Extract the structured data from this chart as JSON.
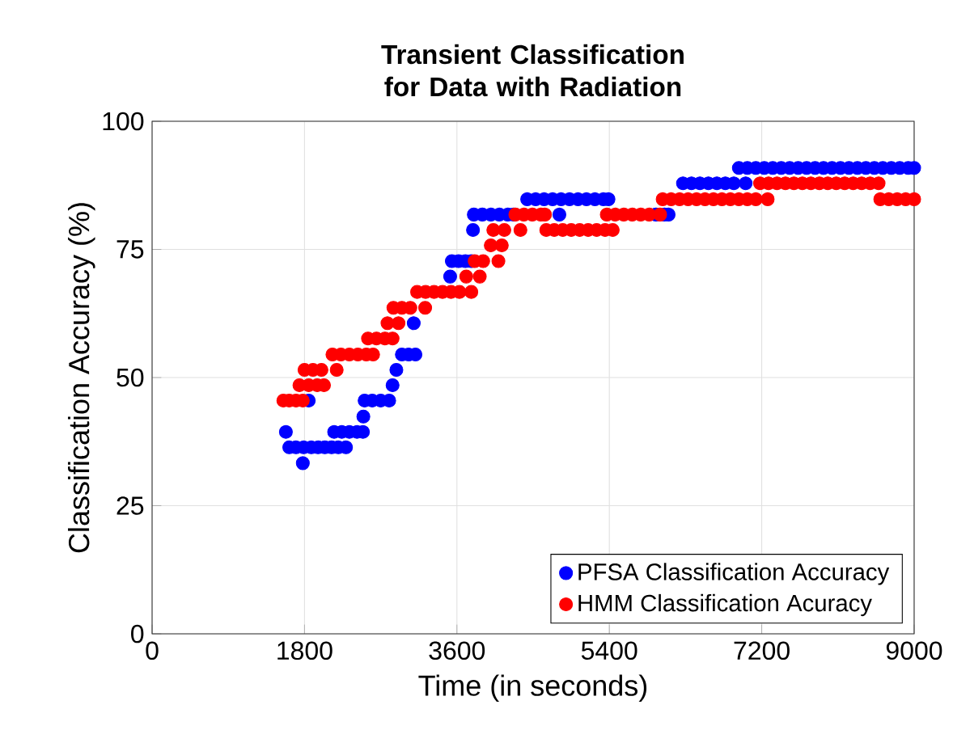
{
  "chart_data": {
    "type": "scatter",
    "title": "Transient Classification for Data with Radiation",
    "xlabel": "Time (in seconds)",
    "ylabel": "Classification Accuracy (%)",
    "xlim": [
      0,
      9000
    ],
    "ylim": [
      0,
      100
    ],
    "xticks": [
      0,
      1800,
      3600,
      5400,
      7200,
      9000
    ],
    "yticks": [
      0,
      25,
      50,
      75,
      100
    ],
    "grid": true,
    "legend": "bottom right",
    "marker": "circle",
    "series": [
      {
        "name": "PFSA Classification Accuracy",
        "color": "#0000ff",
        "x": [
          1580,
          1620,
          1700,
          1780,
          1790,
          1850,
          1880,
          1960,
          2040,
          2120,
          2150,
          2200,
          2240,
          2290,
          2330,
          2420,
          2490,
          2495,
          2510,
          2600,
          2700,
          2800,
          2840,
          2885,
          2950,
          3030,
          3090,
          3110,
          3225,
          3300,
          3400,
          3500,
          3520,
          3540,
          3620,
          3700,
          3770,
          3790,
          3800,
          3900,
          4000,
          4100,
          4200,
          4270,
          4430,
          4530,
          4630,
          4730,
          4810,
          4830,
          4930,
          5030,
          5130,
          5230,
          5330,
          5370,
          5390,
          5450,
          5550,
          5650,
          5750,
          5850,
          5950,
          6050,
          6100,
          6270,
          6370,
          6470,
          6570,
          6670,
          6770,
          6870,
          6930,
          7010,
          7030,
          7130,
          7230,
          7330,
          7430,
          7530,
          7630,
          7730,
          7830,
          7930,
          8030,
          8130,
          8230,
          8330,
          8430,
          8530,
          8630,
          8730,
          8830,
          8930,
          9000
        ],
        "values": [
          39.4,
          36.4,
          36.4,
          33.3,
          36.4,
          45.5,
          36.4,
          36.4,
          36.4,
          36.4,
          39.4,
          36.4,
          39.4,
          36.4,
          39.4,
          39.4,
          39.4,
          42.4,
          45.5,
          45.5,
          45.5,
          45.5,
          48.5,
          51.5,
          54.5,
          54.5,
          60.6,
          54.5,
          null,
          null,
          null,
          null,
          69.7,
          72.7,
          72.7,
          72.7,
          72.7,
          78.8,
          81.8,
          81.8,
          81.8,
          81.8,
          81.8,
          81.8,
          84.8,
          84.8,
          84.8,
          84.8,
          81.8,
          84.8,
          84.8,
          84.8,
          84.8,
          84.8,
          84.8,
          null,
          84.8,
          null,
          null,
          null,
          null,
          null,
          81.8,
          81.8,
          81.8,
          87.9,
          87.9,
          87.9,
          87.9,
          87.9,
          87.9,
          87.9,
          90.9,
          87.9,
          90.9,
          90.9,
          90.9,
          90.9,
          90.9,
          90.9,
          90.9,
          90.9,
          90.9,
          90.9,
          90.9,
          90.9,
          90.9,
          90.9,
          90.9,
          90.9,
          90.9,
          90.9,
          90.9,
          90.9,
          90.9
        ]
      },
      {
        "name": "HMM Classification Acuracy",
        "color": "#ff0000",
        "x": [
          1550,
          1620,
          1700,
          1740,
          1780,
          1800,
          1850,
          1900,
          1950,
          2000,
          2030,
          2130,
          2180,
          2230,
          2330,
          2430,
          2530,
          2550,
          2610,
          2650,
          2750,
          2780,
          2840,
          2850,
          2910,
          2950,
          3050,
          3130,
          3225,
          3230,
          3330,
          3430,
          3530,
          3630,
          3710,
          3770,
          3810,
          3870,
          3910,
          4000,
          4030,
          4090,
          4130,
          4160,
          4290,
          4350,
          4390,
          4490,
          4590,
          4640,
          4655,
          4750,
          4850,
          4950,
          5050,
          5150,
          5250,
          5350,
          5370,
          5440,
          5470,
          5570,
          5670,
          5770,
          5870,
          6000,
          6030,
          6130,
          6230,
          6330,
          6430,
          6530,
          6630,
          6730,
          6830,
          6930,
          7030,
          7130,
          7180,
          7270,
          7280,
          7380,
          7480,
          7580,
          7680,
          7780,
          7880,
          7980,
          8080,
          8180,
          8280,
          8380,
          8480,
          8580,
          8600,
          8700,
          8800,
          8900,
          9000
        ],
        "values": [
          45.5,
          45.5,
          45.5,
          48.5,
          45.5,
          51.5,
          48.5,
          51.5,
          48.5,
          51.5,
          48.5,
          54.5,
          51.5,
          54.5,
          54.5,
          54.5,
          54.5,
          57.6,
          54.5,
          57.6,
          57.6,
          60.6,
          57.6,
          63.6,
          60.6,
          63.6,
          63.6,
          66.7,
          63.6,
          66.7,
          66.7,
          66.7,
          66.7,
          66.7,
          69.7,
          66.7,
          72.7,
          69.7,
          72.7,
          75.8,
          78.8,
          72.7,
          75.8,
          78.8,
          81.8,
          78.8,
          81.8,
          81.8,
          81.8,
          81.8,
          78.8,
          78.8,
          78.8,
          78.8,
          78.8,
          78.8,
          78.8,
          78.8,
          81.8,
          78.8,
          81.8,
          81.8,
          81.8,
          81.8,
          81.8,
          81.8,
          84.8,
          84.8,
          84.8,
          84.8,
          84.8,
          84.8,
          84.8,
          84.8,
          84.8,
          84.8,
          84.8,
          84.8,
          87.9,
          84.8,
          87.9,
          87.9,
          87.9,
          87.9,
          87.9,
          87.9,
          87.9,
          87.9,
          87.9,
          87.9,
          87.9,
          87.9,
          87.9,
          87.9,
          84.8,
          84.8,
          84.8,
          84.8,
          84.8
        ]
      }
    ]
  }
}
